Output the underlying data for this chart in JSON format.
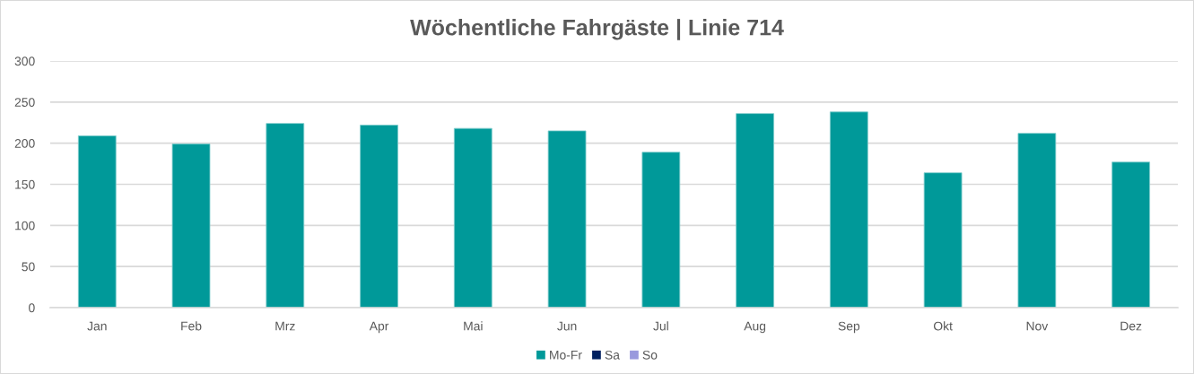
{
  "chart_data": {
    "type": "bar",
    "title": "Wöchentliche Fahrgäste | Linie 714",
    "categories": [
      "Jan",
      "Feb",
      "Mrz",
      "Apr",
      "Mai",
      "Jun",
      "Jul",
      "Aug",
      "Sep",
      "Okt",
      "Nov",
      "Dez"
    ],
    "series": [
      {
        "name": "Mo-Fr",
        "color": "#009999",
        "values": [
          209,
          199,
          224,
          222,
          218,
          215,
          189,
          236,
          238,
          164,
          212,
          177
        ]
      },
      {
        "name": "Sa",
        "color": "#002060",
        "values": [
          null,
          null,
          null,
          null,
          null,
          null,
          null,
          null,
          null,
          null,
          null,
          null
        ]
      },
      {
        "name": "So",
        "color": "#9999dd",
        "values": [
          null,
          null,
          null,
          null,
          null,
          null,
          null,
          null,
          null,
          null,
          null,
          null
        ]
      }
    ],
    "stacked": true,
    "ylim": [
      0,
      300
    ],
    "yticks": [
      0,
      50,
      100,
      150,
      200,
      250,
      300
    ],
    "grid": "y",
    "legend": "bottom"
  }
}
